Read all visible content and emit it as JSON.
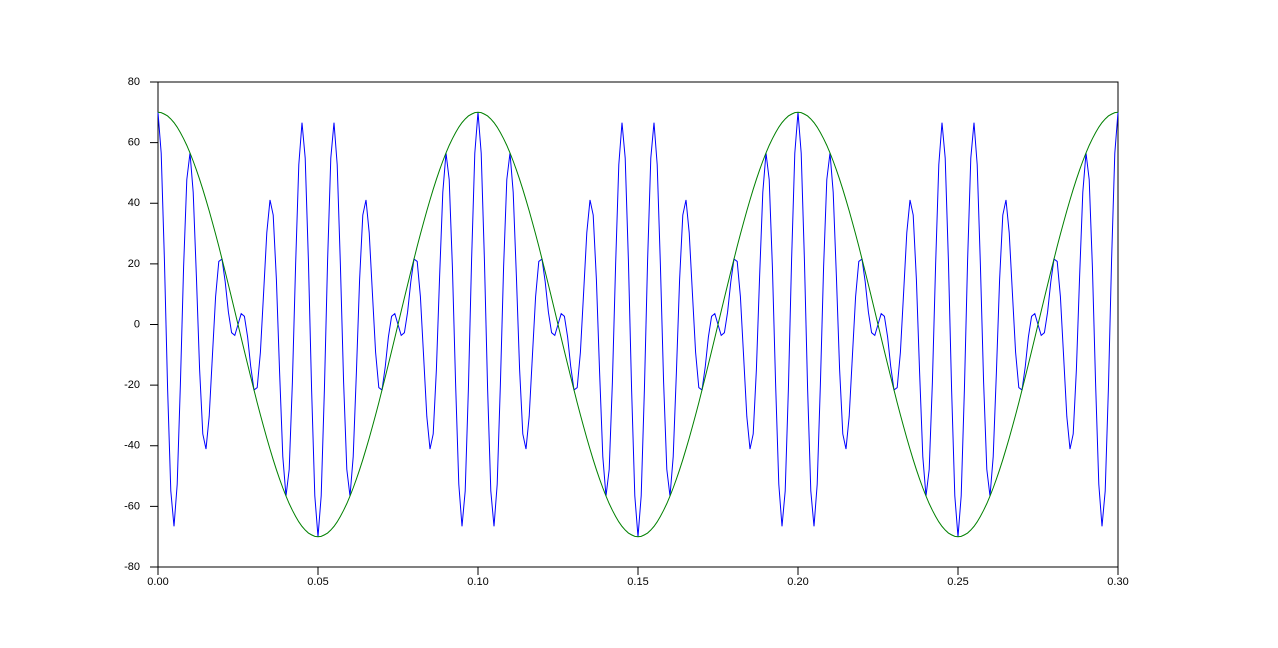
{
  "chart_data": {
    "type": "line",
    "x": [
      0,
      0.001,
      0.002,
      0.003,
      0.004,
      0.005,
      0.006,
      0.007,
      0.008,
      0.009,
      0.01,
      0.011,
      0.012,
      0.013,
      0.014,
      0.015,
      0.016,
      0.017,
      0.018,
      0.019,
      0.02,
      0.021,
      0.022,
      0.023,
      0.024,
      0.025,
      0.026,
      0.027,
      0.028,
      0.029,
      0.03,
      0.031,
      0.032,
      0.033,
      0.034,
      0.035,
      0.036,
      0.037,
      0.038,
      0.039,
      0.04,
      0.041,
      0.042,
      0.043,
      0.044,
      0.045,
      0.046,
      0.047,
      0.048,
      0.049,
      0.05,
      0.051,
      0.052,
      0.053,
      0.054,
      0.055,
      0.056,
      0.057,
      0.058,
      0.059,
      0.06,
      0.061,
      0.062,
      0.063,
      0.064,
      0.065,
      0.066,
      0.067,
      0.068,
      0.069,
      0.07,
      0.071,
      0.072,
      0.073,
      0.074,
      0.075,
      0.076,
      0.077,
      0.078,
      0.079,
      0.08,
      0.081,
      0.082,
      0.083,
      0.084,
      0.085,
      0.086,
      0.087,
      0.088,
      0.089,
      0.09,
      0.091,
      0.092,
      0.093,
      0.094,
      0.095,
      0.096,
      0.097,
      0.098,
      0.099,
      0.1,
      0.101,
      0.102,
      0.103,
      0.104,
      0.105,
      0.106,
      0.107,
      0.108,
      0.109,
      0.11,
      0.111,
      0.112,
      0.113,
      0.114,
      0.115,
      0.116,
      0.117,
      0.118,
      0.119,
      0.12,
      0.121,
      0.122,
      0.123,
      0.124,
      0.125,
      0.126,
      0.127,
      0.128,
      0.129,
      0.13,
      0.131,
      0.132,
      0.133,
      0.134,
      0.135,
      0.136,
      0.137,
      0.138,
      0.139,
      0.14,
      0.141,
      0.142,
      0.143,
      0.144,
      0.145,
      0.146,
      0.147,
      0.148,
      0.149,
      0.15,
      0.151,
      0.152,
      0.153,
      0.154,
      0.155,
      0.156,
      0.157,
      0.158,
      0.159,
      0.16,
      0.161,
      0.162,
      0.163,
      0.164,
      0.165,
      0.166,
      0.167,
      0.168,
      0.169,
      0.17,
      0.171,
      0.172,
      0.173,
      0.174,
      0.175,
      0.176,
      0.177,
      0.178,
      0.179,
      0.18,
      0.181,
      0.182,
      0.183,
      0.184,
      0.185,
      0.186,
      0.187,
      0.188,
      0.189,
      0.19,
      0.191,
      0.192,
      0.193,
      0.194,
      0.195,
      0.196,
      0.197,
      0.198,
      0.199,
      0.2,
      0.201,
      0.202,
      0.203,
      0.204,
      0.205,
      0.206,
      0.207,
      0.208,
      0.209,
      0.21,
      0.211,
      0.212,
      0.213,
      0.214,
      0.215,
      0.216,
      0.217,
      0.218,
      0.219,
      0.22,
      0.221,
      0.222,
      0.223,
      0.224,
      0.225,
      0.226,
      0.227,
      0.228,
      0.229,
      0.23,
      0.231,
      0.232,
      0.233,
      0.234,
      0.235,
      0.236,
      0.237,
      0.238,
      0.239,
      0.24,
      0.241,
      0.242,
      0.243,
      0.244,
      0.245,
      0.246,
      0.247,
      0.248,
      0.249,
      0.25,
      0.251,
      0.252,
      0.253,
      0.254,
      0.255,
      0.256,
      0.257,
      0.258,
      0.259,
      0.26,
      0.261,
      0.262,
      0.263,
      0.264,
      0.265,
      0.266,
      0.267,
      0.268,
      0.269,
      0.27,
      0.271,
      0.272,
      0.273,
      0.274,
      0.275,
      0.276,
      0.277,
      0.278,
      0.279,
      0.28,
      0.281,
      0.282,
      0.283,
      0.284,
      0.285,
      0.286,
      0.287,
      0.288,
      0.289,
      0.29,
      0.291,
      0.292,
      0.293,
      0.294,
      0.295,
      0.296,
      0.297,
      0.298,
      0.299,
      0.3
    ],
    "series": [
      {
        "color": "#0000ff",
        "values": [
          70,
          56.5,
          21.5,
          -21.2,
          -54.9,
          -66.6,
          -52.7,
          -19.6,
          19.0,
          47.8,
          56.6,
          43.6,
          15.8,
          -14.8,
          -36.1,
          -41.1,
          -30.3,
          -10.4,
          9.2,
          20.8,
          21.6,
          14.1,
          4.1,
          -2.7,
          -3.6,
          0,
          3.6,
          2.7,
          -4.1,
          -14.1,
          -21.6,
          -20.8,
          -9.2,
          10.4,
          30.3,
          41.1,
          36.1,
          14.8,
          -15.8,
          -43.6,
          -56.6,
          -47.8,
          -19.0,
          19.6,
          52.7,
          66.6,
          54.9,
          21.2,
          -21.5,
          -56.5,
          -70,
          -56.5,
          -21.5,
          21.2,
          54.9,
          66.6,
          52.7,
          19.6,
          -19.0,
          -47.8,
          -56.6,
          -43.6,
          -15.8,
          14.8,
          36.1,
          41.1,
          30.3,
          10.4,
          -9.2,
          -20.8,
          -21.6,
          -14.1,
          -4.1,
          2.7,
          3.6,
          0,
          -3.6,
          -2.7,
          4.1,
          14.1,
          21.6,
          20.8,
          9.2,
          -10.4,
          -30.3,
          -41.1,
          -36.1,
          -14.8,
          15.8,
          43.6,
          56.6,
          47.8,
          19.0,
          -19.6,
          -52.7,
          -66.6,
          -54.9,
          -21.2,
          21.5,
          56.5,
          70,
          56.5,
          21.5,
          -21.2,
          -54.9,
          -66.6,
          -52.7,
          -19.6,
          19.0,
          47.8,
          56.6,
          43.6,
          15.8,
          -14.8,
          -36.1,
          -41.1,
          -30.3,
          -10.4,
          9.2,
          20.8,
          21.6,
          14.1,
          4.1,
          -2.7,
          -3.6,
          0,
          3.6,
          2.7,
          -4.1,
          -14.1,
          -21.6,
          -20.8,
          -9.2,
          10.4,
          30.3,
          41.1,
          36.1,
          14.8,
          -15.8,
          -43.6,
          -56.6,
          -47.8,
          -19.0,
          19.6,
          52.7,
          66.6,
          54.9,
          21.2,
          -21.5,
          -56.5,
          -70,
          -56.5,
          -21.5,
          21.2,
          54.9,
          66.6,
          52.7,
          19.6,
          -19.0,
          -47.8,
          -56.6,
          -43.6,
          -15.8,
          14.8,
          36.1,
          41.1,
          30.3,
          10.4,
          -9.2,
          -20.8,
          -21.6,
          -14.1,
          -4.1,
          2.7,
          3.6,
          0,
          -3.6,
          -2.7,
          4.1,
          14.1,
          21.6,
          20.8,
          9.2,
          -10.4,
          -30.3,
          -41.1,
          -36.1,
          -14.8,
          15.8,
          43.6,
          56.6,
          47.8,
          19.0,
          -19.6,
          -52.7,
          -66.6,
          -54.9,
          -21.2,
          21.5,
          56.5,
          70,
          56.5,
          21.5,
          -21.2,
          -54.9,
          -66.6,
          -52.7,
          -19.6,
          19.0,
          47.8,
          56.6,
          43.6,
          15.8,
          -14.8,
          -36.1,
          -41.1,
          -30.3,
          -10.4,
          9.2,
          20.8,
          21.6,
          14.1,
          4.1,
          -2.7,
          -3.6,
          0,
          3.6,
          2.7,
          -4.1,
          -14.1,
          -21.6,
          -20.8,
          -9.2,
          10.4,
          30.3,
          41.1,
          36.1,
          14.8,
          -15.8,
          -43.6,
          -56.6,
          -47.8,
          -19.0,
          19.6,
          52.7,
          66.6,
          54.9,
          21.2,
          -21.5,
          -56.5,
          -70,
          -56.5,
          -21.5,
          21.2,
          54.9,
          66.6,
          52.7,
          19.6,
          -19.0,
          -47.8,
          -56.6,
          -43.6,
          -15.8,
          14.8,
          36.1,
          41.1,
          30.3,
          10.4,
          -9.2,
          -20.8,
          -21.6,
          -14.1,
          -4.1,
          2.7,
          3.6,
          0,
          -3.6,
          -2.7,
          4.1,
          14.1,
          21.6,
          20.8,
          9.2,
          -10.4,
          -30.3,
          -41.1,
          -36.1,
          -14.8,
          15.8,
          43.6,
          56.6,
          47.8,
          19.0,
          -19.6,
          -52.7,
          -66.6,
          -54.9,
          -21.2,
          21.5,
          56.5,
          70
        ]
      },
      {
        "color": "#008000",
        "values": [
          70,
          69.9,
          69.4,
          68.8,
          67.8,
          66.6,
          65.1,
          63.3,
          61.3,
          59.1,
          56.6,
          53.9,
          51.0,
          47.9,
          44.6,
          41.1,
          37.5,
          33.7,
          29.8,
          25.8,
          21.6,
          17.4,
          13.1,
          8.8,
          4.4,
          0,
          -4.4,
          -8.8,
          -13.1,
          -17.4,
          -21.6,
          -25.8,
          -29.8,
          -33.7,
          -37.5,
          -41.1,
          -44.6,
          -47.9,
          -51.0,
          -53.9,
          -56.6,
          -59.1,
          -61.3,
          -63.3,
          -65.1,
          -66.6,
          -67.8,
          -68.8,
          -69.4,
          -69.9,
          -70,
          -69.9,
          -69.4,
          -68.8,
          -67.8,
          -66.6,
          -65.1,
          -63.3,
          -61.3,
          -59.1,
          -56.6,
          -53.9,
          -51.0,
          -47.9,
          -44.6,
          -41.1,
          -37.5,
          -33.7,
          -29.8,
          -25.8,
          -21.6,
          -17.4,
          -13.1,
          -8.8,
          -4.4,
          0,
          4.4,
          8.8,
          13.1,
          17.4,
          21.6,
          25.8,
          29.8,
          33.7,
          37.5,
          41.1,
          44.6,
          47.9,
          51.0,
          53.9,
          56.6,
          59.1,
          61.3,
          63.3,
          65.1,
          66.6,
          67.8,
          68.8,
          69.4,
          69.9,
          70,
          69.9,
          69.4,
          68.8,
          67.8,
          66.6,
          65.1,
          63.3,
          61.3,
          59.1,
          56.6,
          53.9,
          51.0,
          47.9,
          44.6,
          41.1,
          37.5,
          33.7,
          29.8,
          25.8,
          21.6,
          17.4,
          13.1,
          8.8,
          4.4,
          0,
          -4.4,
          -8.8,
          -13.1,
          -17.4,
          -21.6,
          -25.8,
          -29.8,
          -33.7,
          -37.5,
          -41.1,
          -44.6,
          -47.9,
          -51.0,
          -53.9,
          -56.6,
          -59.1,
          -61.3,
          -63.3,
          -65.1,
          -66.6,
          -67.8,
          -68.8,
          -69.4,
          -69.9,
          -70,
          -69.9,
          -69.4,
          -68.8,
          -67.8,
          -66.6,
          -65.1,
          -63.3,
          -61.3,
          -59.1,
          -56.6,
          -53.9,
          -51.0,
          -47.9,
          -44.6,
          -41.1,
          -37.5,
          -33.7,
          -29.8,
          -25.8,
          -21.6,
          -17.4,
          -13.1,
          -8.8,
          -4.4,
          0,
          4.4,
          8.8,
          13.1,
          17.4,
          21.6,
          25.8,
          29.8,
          33.7,
          37.5,
          41.1,
          44.6,
          47.9,
          51.0,
          53.9,
          56.6,
          59.1,
          61.3,
          63.3,
          65.1,
          66.6,
          67.8,
          68.8,
          69.4,
          69.9,
          70,
          69.9,
          69.4,
          68.8,
          67.8,
          66.6,
          65.1,
          63.3,
          61.3,
          59.1,
          56.6,
          53.9,
          51.0,
          47.9,
          44.6,
          41.1,
          37.5,
          33.7,
          29.8,
          25.8,
          21.6,
          17.4,
          13.1,
          8.8,
          4.4,
          0,
          -4.4,
          -8.8,
          -13.1,
          -17.4,
          -21.6,
          -25.8,
          -29.8,
          -33.7,
          -37.5,
          -41.1,
          -44.6,
          -47.9,
          -51.0,
          -53.9,
          -56.6,
          -59.1,
          -61.3,
          -63.3,
          -65.1,
          -66.6,
          -67.8,
          -68.8,
          -69.4,
          -69.9,
          -70,
          -69.9,
          -69.4,
          -68.8,
          -67.8,
          -66.6,
          -65.1,
          -63.3,
          -61.3,
          -59.1,
          -56.6,
          -53.9,
          -51.0,
          -47.9,
          -44.6,
          -41.1,
          -37.5,
          -33.7,
          -29.8,
          -25.8,
          -21.6,
          -17.4,
          -13.1,
          -8.8,
          -4.4,
          0,
          4.4,
          8.8,
          13.1,
          17.4,
          21.6,
          25.8,
          29.8,
          33.7,
          37.5,
          41.1,
          44.6,
          47.9,
          51.0,
          53.9,
          56.6,
          59.1,
          61.3,
          63.3,
          65.1,
          66.6,
          67.8,
          68.8,
          69.4,
          69.9,
          70
        ]
      }
    ],
    "xlim": [
      0,
      0.3
    ],
    "xticks": [
      {
        "value": 0,
        "label": "0.00"
      },
      {
        "value": 0.05,
        "label": "0.05"
      },
      {
        "value": 0.1,
        "label": "0.10"
      },
      {
        "value": 0.15,
        "label": "0.15"
      },
      {
        "value": 0.2,
        "label": "0.20"
      },
      {
        "value": 0.25,
        "label": "0.25"
      },
      {
        "value": 0.3,
        "label": "0.30"
      }
    ],
    "ylim": [
      -80,
      80
    ],
    "yticks": [
      -80,
      -60,
      -40,
      -20,
      0,
      20,
      40,
      60,
      80
    ],
    "grid": false
  }
}
